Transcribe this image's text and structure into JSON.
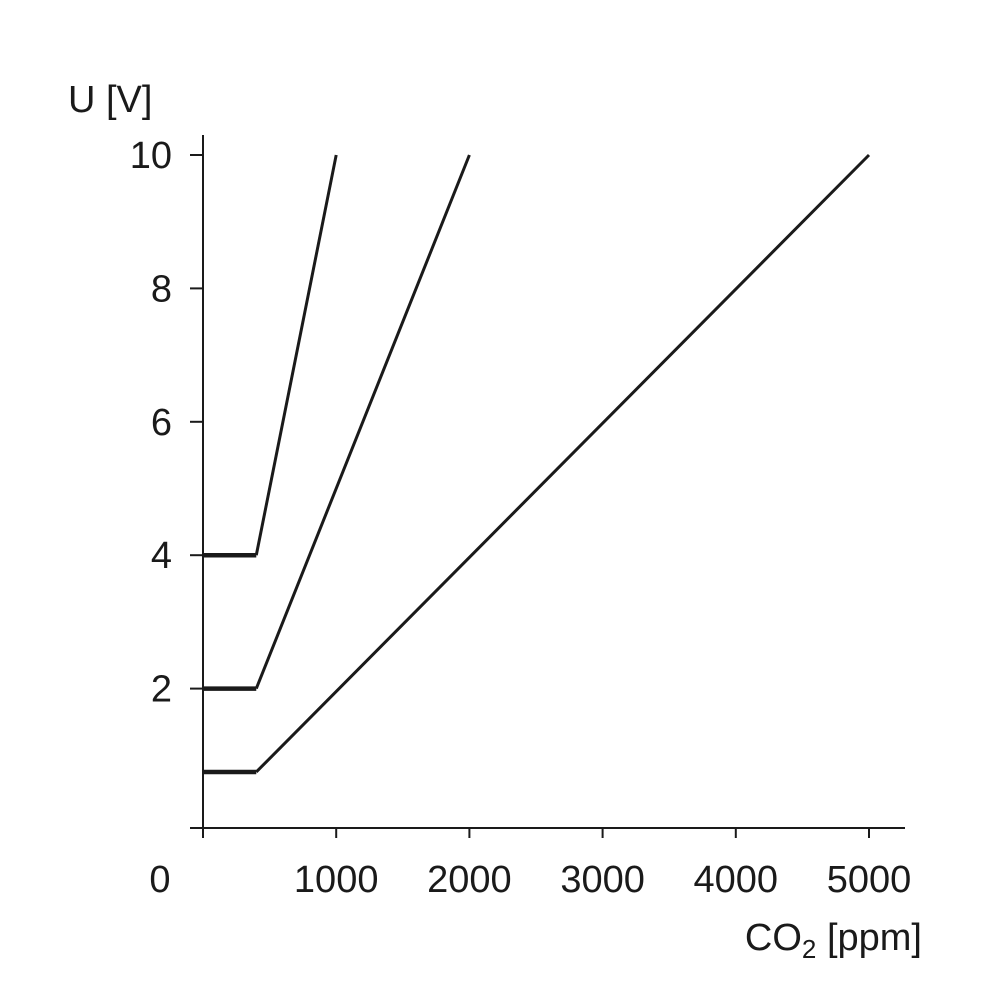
{
  "chart_data": {
    "type": "line",
    "xlabel": "CO₂ [ppm]",
    "ylabel": "U [V]",
    "xlim": [
      0,
      5300
    ],
    "ylim": [
      -0.2,
      10.4
    ],
    "x_ticks": [
      0,
      1000,
      2000,
      3000,
      4000,
      5000
    ],
    "y_ticks": [
      2,
      4,
      6,
      8,
      10
    ],
    "x_tick_labels": [
      "0",
      "1000",
      "2000",
      "3000",
      "4000",
      "5000"
    ],
    "y_tick_labels": [
      "2",
      "4",
      "6",
      "8",
      "10"
    ],
    "grid": false,
    "legend": "none",
    "series": [
      {
        "x": [
          0,
          400,
          1000
        ],
        "y": [
          4,
          4,
          10
        ]
      },
      {
        "x": [
          0,
          400,
          2000
        ],
        "y": [
          2,
          2,
          10
        ]
      },
      {
        "x": [
          0,
          400,
          5000
        ],
        "y": [
          0.75,
          0.75,
          10
        ]
      }
    ]
  }
}
